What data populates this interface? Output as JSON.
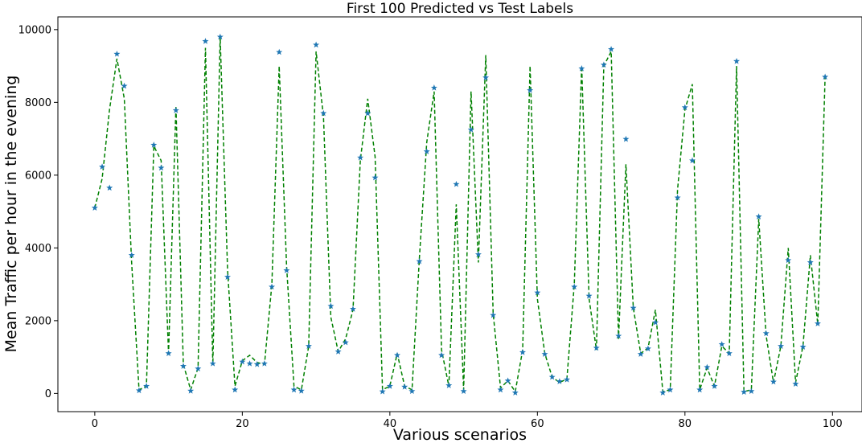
{
  "chart_data": {
    "type": "line",
    "title": "First 100 Predicted vs Test Labels",
    "xlabel": "Various scenarios",
    "ylabel": "Mean Traffic per hour in the evening",
    "xlim": [
      -5,
      104
    ],
    "ylim": [
      -500,
      10350
    ],
    "xticks": [
      0,
      20,
      40,
      60,
      80,
      100
    ],
    "yticks": [
      0,
      2000,
      4000,
      6000,
      8000,
      10000
    ],
    "grid": false,
    "series": [
      {
        "style": "dashed-line",
        "color": "#008000",
        "x": [
          0,
          1,
          2,
          3,
          4,
          5,
          6,
          7,
          8,
          9,
          10,
          11,
          12,
          13,
          14,
          15,
          16,
          17,
          18,
          19,
          20,
          21,
          22,
          23,
          24,
          25,
          26,
          27,
          28,
          29,
          30,
          31,
          32,
          33,
          34,
          35,
          36,
          37,
          38,
          39,
          40,
          41,
          42,
          43,
          44,
          45,
          46,
          47,
          48,
          49,
          50,
          51,
          52,
          53,
          54,
          55,
          56,
          57,
          58,
          59,
          60,
          61,
          62,
          63,
          64,
          65,
          66,
          67,
          68,
          69,
          70,
          71,
          72,
          73,
          74,
          75,
          76,
          77,
          78,
          79,
          80,
          81,
          82,
          83,
          84,
          85,
          86,
          87,
          88,
          89,
          90,
          91,
          92,
          93,
          94,
          95,
          96,
          97,
          98,
          99
        ],
        "values": [
          5100,
          5900,
          7800,
          9200,
          8100,
          3600,
          100,
          200,
          6800,
          6400,
          1100,
          7900,
          800,
          100,
          700,
          9500,
          800,
          9800,
          3400,
          200,
          900,
          1050,
          850,
          800,
          3000,
          9000,
          3500,
          200,
          100,
          1300,
          9400,
          7600,
          2100,
          1150,
          1500,
          2300,
          6400,
          8100,
          6500,
          100,
          200,
          1100,
          200,
          100,
          3700,
          6900,
          8300,
          1200,
          200,
          5200,
          100,
          8300,
          3600,
          9300,
          2200,
          150,
          350,
          50,
          1200,
          9000,
          2600,
          1100,
          450,
          300,
          400,
          3000,
          9000,
          2600,
          1200,
          9000,
          9400,
          1500,
          6300,
          2350,
          1100,
          1250,
          2300,
          50,
          100,
          5600,
          7800,
          8500,
          100,
          700,
          200,
          1300,
          1100,
          9000,
          50,
          100,
          4800,
          1600,
          300,
          1300,
          4000,
          300,
          1300,
          3800,
          1900,
          8700
        ]
      },
      {
        "style": "star-marker",
        "color": "#1f77b4",
        "x": [
          0,
          1,
          2,
          3,
          4,
          5,
          6,
          7,
          8,
          9,
          10,
          11,
          12,
          13,
          14,
          15,
          16,
          17,
          18,
          19,
          20,
          21,
          22,
          23,
          24,
          25,
          26,
          27,
          28,
          29,
          30,
          31,
          32,
          33,
          34,
          35,
          36,
          37,
          38,
          39,
          40,
          41,
          42,
          43,
          44,
          45,
          46,
          47,
          48,
          49,
          50,
          51,
          52,
          53,
          54,
          55,
          56,
          57,
          58,
          59,
          60,
          61,
          62,
          63,
          64,
          65,
          66,
          67,
          68,
          69,
          70,
          71,
          72,
          73,
          74,
          75,
          76,
          77,
          78,
          79,
          80,
          81,
          82,
          83,
          84,
          85,
          86,
          87,
          88,
          89,
          90,
          91,
          92,
          93,
          94,
          95,
          96,
          97,
          98,
          99
        ],
        "values": [
          5100,
          6230,
          5650,
          9330,
          8450,
          3800,
          80,
          200,
          6830,
          6200,
          1100,
          7780,
          750,
          70,
          680,
          9680,
          820,
          9800,
          3200,
          100,
          870,
          820,
          800,
          820,
          2930,
          9380,
          3380,
          100,
          70,
          1300,
          9580,
          7700,
          2400,
          1150,
          1400,
          2320,
          6480,
          7700,
          5930,
          50,
          200,
          1050,
          180,
          60,
          3630,
          6650,
          8400,
          1050,
          220,
          5750,
          60,
          7250,
          3820,
          8680,
          2150,
          100,
          350,
          20,
          1130,
          8330,
          2770,
          1080,
          450,
          330,
          380,
          2930,
          8930,
          2680,
          1250,
          9030,
          9460,
          1580,
          6990,
          2350,
          1080,
          1230,
          1950,
          20,
          100,
          5380,
          7860,
          6400,
          100,
          720,
          200,
          1350,
          1100,
          9130,
          40,
          60,
          4860,
          1650,
          320,
          1300,
          3660,
          260,
          1280,
          3600,
          1920,
          8700
        ]
      }
    ]
  }
}
